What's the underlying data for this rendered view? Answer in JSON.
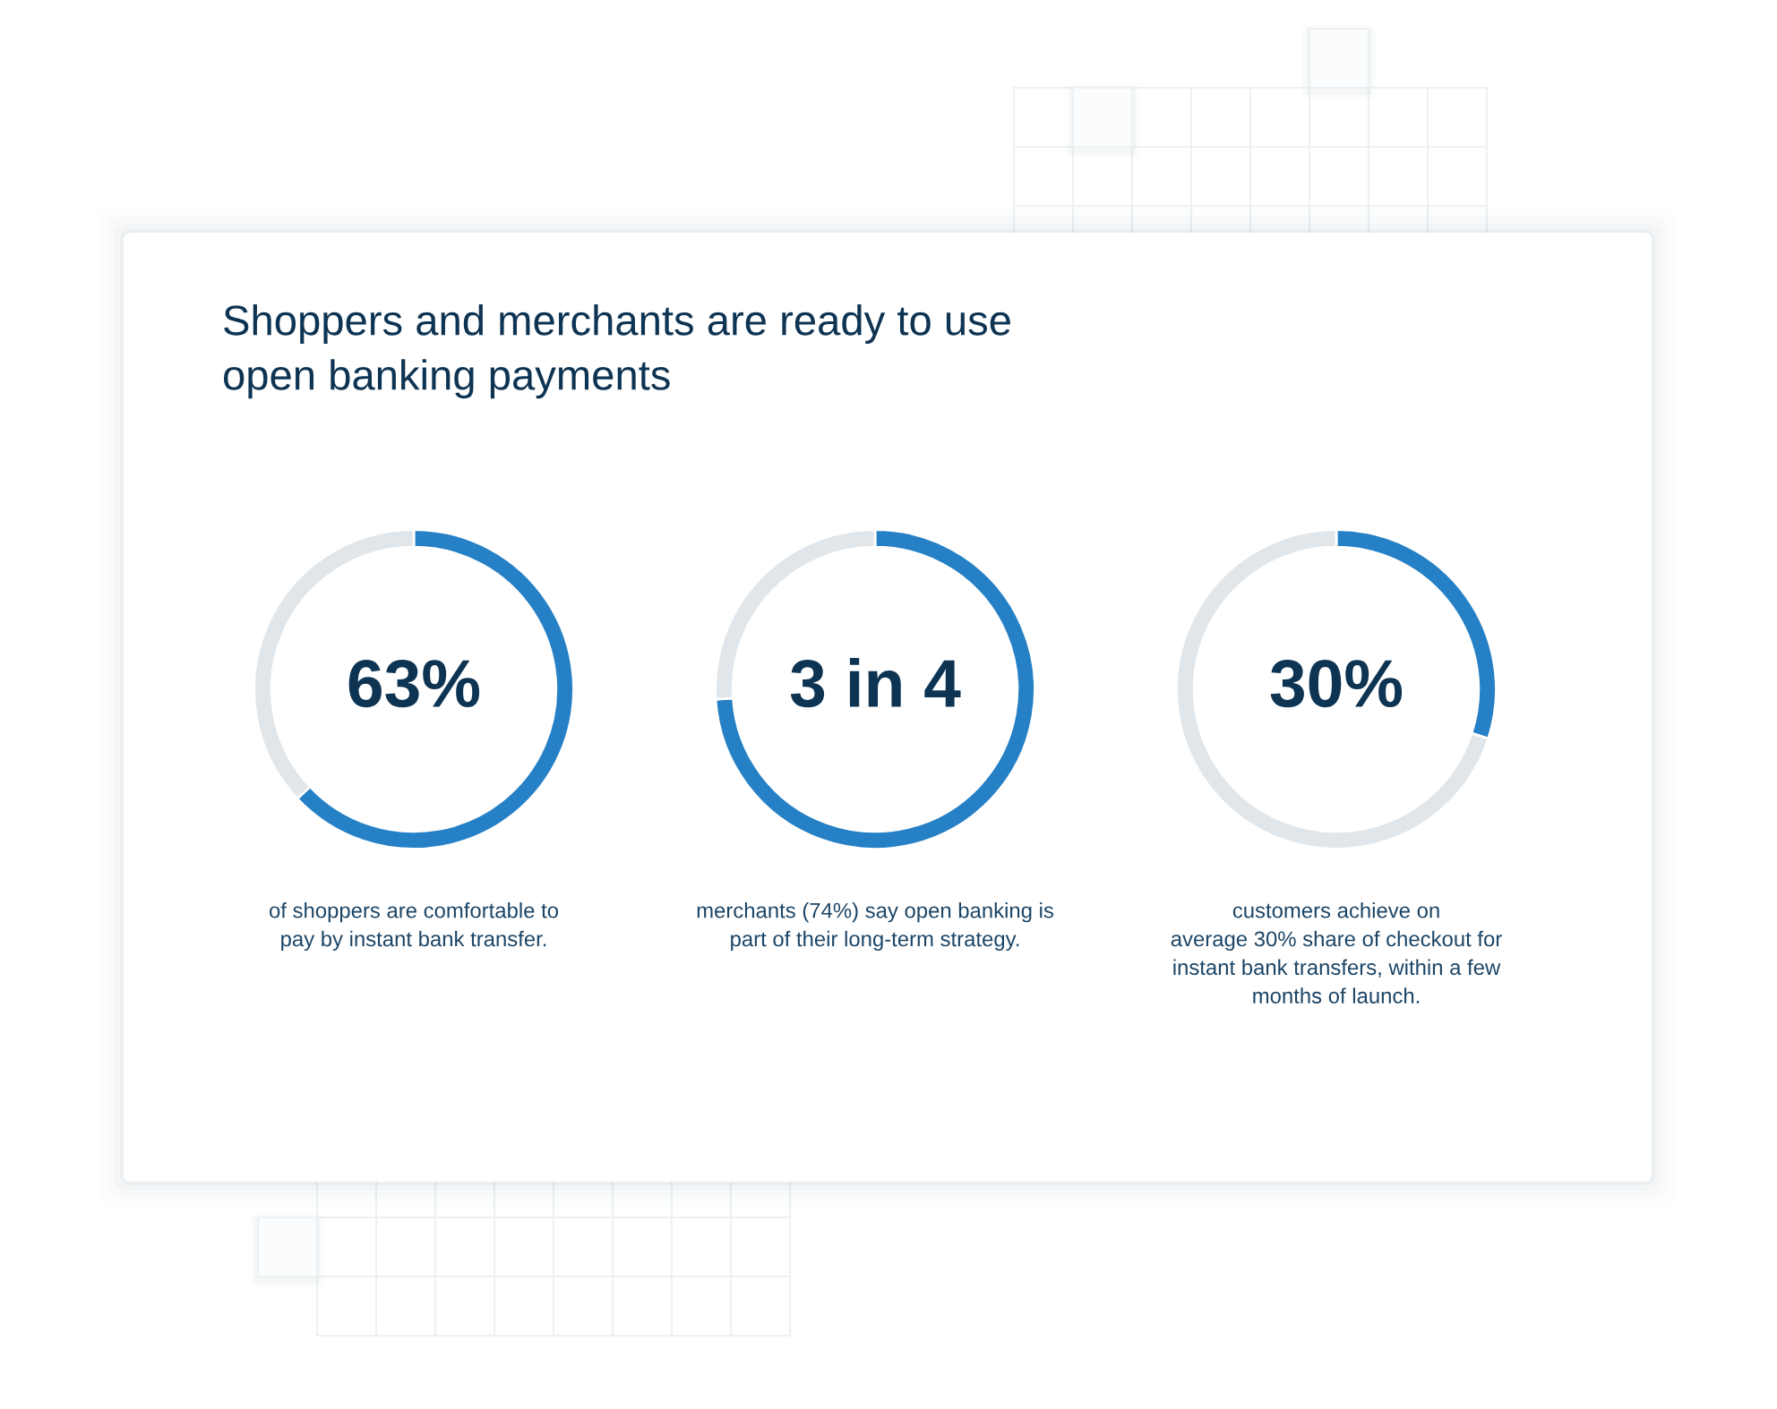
{
  "chart_data": [
    {
      "type": "donut",
      "title": "Shoppers and merchants are ready to use\nopen banking payments",
      "categories": [
        null,
        null
      ],
      "values": [
        63,
        37
      ],
      "colors": [
        "#2580c6",
        "#e1e6ea"
      ],
      "annotations": [
        "63%",
        "of shoppers are comfortable to\npay by instant bank transfer."
      ]
    },
    {
      "type": "donut",
      "categories": [
        null,
        null
      ],
      "values": [
        74,
        26
      ],
      "colors": [
        "#2580c6",
        "#e1e6ea"
      ],
      "annotations": [
        "3 in 4",
        "merchants (74%) say open banking is\npart of their long-term strategy."
      ]
    },
    {
      "type": "donut",
      "categories": [
        null,
        null
      ],
      "values": [
        30,
        70
      ],
      "colors": [
        "#2580c6",
        "#e1e6ea"
      ],
      "annotations": [
        "30%",
        "customers achieve on\naverage 30% share of checkout for\ninstant bank transfers, within a few\nmonths of launch."
      ]
    }
  ]
}
